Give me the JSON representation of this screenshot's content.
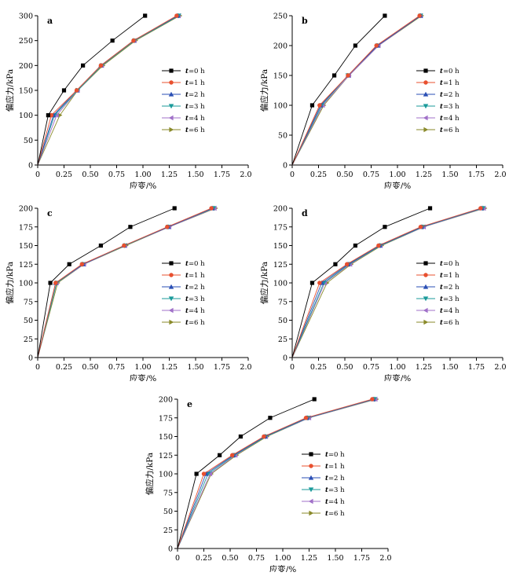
{
  "legend_prefix": "t",
  "legend_labels": [
    "=0 h",
    "=1 h",
    "=2 h",
    "=3 h",
    "=4 h",
    "=6 h"
  ],
  "series_colors": [
    "#000000",
    "#e8502f",
    "#2a4fb5",
    "#1a9a9a",
    "#a070c8",
    "#8a8a2a"
  ],
  "series_markers": [
    "square",
    "circle",
    "triangle-up",
    "triangle-down",
    "triangle-left",
    "triangle-right"
  ],
  "chart_data": [
    {
      "type": "line",
      "panel_label": "a",
      "xlabel": "应变/%",
      "ylabel": "偏应力/kPa",
      "xlim": [
        0,
        2.0
      ],
      "ylim": [
        0,
        300
      ],
      "xticks": [
        "0",
        "0.25",
        "0.50",
        "0.75",
        "1.00",
        "1.25",
        "1.50",
        "1.75",
        "2.00"
      ],
      "yticks": [
        "0",
        "50",
        "100",
        "150",
        "200",
        "250",
        "300"
      ],
      "legend": "center-right",
      "series": [
        {
          "x": [
            0,
            0.1,
            0.25,
            0.43,
            0.71,
            1.02
          ],
          "y": [
            0,
            100,
            150,
            200,
            250,
            300
          ]
        },
        {
          "x": [
            0,
            0.13,
            0.37,
            0.6,
            0.91,
            1.32
          ],
          "y": [
            0,
            100,
            150,
            200,
            250,
            300
          ]
        },
        {
          "x": [
            0,
            0.15,
            0.37,
            0.6,
            0.91,
            1.33
          ],
          "y": [
            0,
            100,
            150,
            200,
            250,
            300
          ]
        },
        {
          "x": [
            0,
            0.16,
            0.38,
            0.61,
            0.92,
            1.34
          ],
          "y": [
            0,
            100,
            150,
            200,
            250,
            300
          ]
        },
        {
          "x": [
            0,
            0.18,
            0.38,
            0.61,
            0.92,
            1.34
          ],
          "y": [
            0,
            100,
            150,
            200,
            250,
            300
          ]
        },
        {
          "x": [
            0,
            0.21,
            0.38,
            0.62,
            0.93,
            1.35
          ],
          "y": [
            0,
            100,
            150,
            200,
            250,
            300
          ]
        }
      ]
    },
    {
      "type": "line",
      "panel_label": "b",
      "xlabel": "应变/%",
      "ylabel": "偏应力/kPa",
      "xlim": [
        0,
        2.0
      ],
      "ylim": [
        0,
        250
      ],
      "xticks": [
        "0",
        "0.25",
        "0.50",
        "0.75",
        "1.00",
        "1.25",
        "1.50",
        "1.75",
        "2.00"
      ],
      "yticks": [
        "0",
        "50",
        "100",
        "150",
        "200",
        "250"
      ],
      "legend": "center-right",
      "series": [
        {
          "x": [
            0,
            0.19,
            0.4,
            0.6,
            0.88
          ],
          "y": [
            0,
            100,
            150,
            200,
            250
          ]
        },
        {
          "x": [
            0,
            0.26,
            0.53,
            0.8,
            1.21
          ],
          "y": [
            0,
            100,
            150,
            200,
            250
          ]
        },
        {
          "x": [
            0,
            0.27,
            0.53,
            0.81,
            1.22
          ],
          "y": [
            0,
            100,
            150,
            200,
            250
          ]
        },
        {
          "x": [
            0,
            0.28,
            0.53,
            0.81,
            1.22
          ],
          "y": [
            0,
            100,
            150,
            200,
            250
          ]
        },
        {
          "x": [
            0,
            0.29,
            0.54,
            0.82,
            1.22
          ],
          "y": [
            0,
            100,
            150,
            200,
            250
          ]
        },
        {
          "x": [
            0,
            0.3,
            0.54,
            0.82,
            1.23
          ],
          "y": [
            0,
            100,
            150,
            200,
            250
          ]
        }
      ]
    },
    {
      "type": "line",
      "panel_label": "c",
      "xlabel": "应变/%",
      "ylabel": "偏应力/kPa",
      "xlim": [
        0,
        2.0
      ],
      "ylim": [
        0,
        200
      ],
      "xticks": [
        "0",
        "0.25",
        "0.50",
        "0.75",
        "1.00",
        "1.25",
        "1.50",
        "1.75",
        "2.00"
      ],
      "yticks": [
        "0",
        "25",
        "50",
        "75",
        "100",
        "125",
        "150",
        "175",
        "200"
      ],
      "legend": "center-right",
      "series": [
        {
          "x": [
            0,
            0.12,
            0.3,
            0.6,
            0.88,
            1.3
          ],
          "y": [
            0,
            100,
            125,
            150,
            175,
            200
          ]
        },
        {
          "x": [
            0,
            0.17,
            0.42,
            0.82,
            1.23,
            1.65
          ],
          "y": [
            0,
            100,
            125,
            150,
            175,
            200
          ]
        },
        {
          "x": [
            0,
            0.17,
            0.43,
            0.82,
            1.24,
            1.66
          ],
          "y": [
            0,
            100,
            125,
            150,
            175,
            200
          ]
        },
        {
          "x": [
            0,
            0.18,
            0.43,
            0.83,
            1.24,
            1.67
          ],
          "y": [
            0,
            100,
            125,
            150,
            175,
            200
          ]
        },
        {
          "x": [
            0,
            0.18,
            0.44,
            0.83,
            1.25,
            1.68
          ],
          "y": [
            0,
            100,
            125,
            150,
            175,
            200
          ]
        },
        {
          "x": [
            0,
            0.19,
            0.44,
            0.84,
            1.25,
            1.69
          ],
          "y": [
            0,
            100,
            125,
            150,
            175,
            200
          ]
        }
      ]
    },
    {
      "type": "line",
      "panel_label": "d",
      "xlabel": "应变/%",
      "ylabel": "偏应力/kPa",
      "xlim": [
        0,
        2.0
      ],
      "ylim": [
        0,
        200
      ],
      "xticks": [
        "0",
        "0.25",
        "0.50",
        "0.75",
        "1.00",
        "1.25",
        "1.50",
        "1.75",
        "2.00"
      ],
      "yticks": [
        "0",
        "25",
        "50",
        "75",
        "100",
        "125",
        "150",
        "175",
        "200"
      ],
      "legend": "center-right",
      "series": [
        {
          "x": [
            0,
            0.19,
            0.41,
            0.6,
            0.88,
            1.31
          ],
          "y": [
            0,
            100,
            125,
            150,
            175,
            200
          ]
        },
        {
          "x": [
            0,
            0.26,
            0.52,
            0.82,
            1.22,
            1.79
          ],
          "y": [
            0,
            100,
            125,
            150,
            175,
            200
          ]
        },
        {
          "x": [
            0,
            0.28,
            0.53,
            0.83,
            1.23,
            1.8
          ],
          "y": [
            0,
            100,
            125,
            150,
            175,
            200
          ]
        },
        {
          "x": [
            0,
            0.3,
            0.54,
            0.84,
            1.24,
            1.81
          ],
          "y": [
            0,
            100,
            125,
            150,
            175,
            200
          ]
        },
        {
          "x": [
            0,
            0.31,
            0.55,
            0.84,
            1.25,
            1.82
          ],
          "y": [
            0,
            100,
            125,
            150,
            175,
            200
          ]
        },
        {
          "x": [
            0,
            0.33,
            0.56,
            0.85,
            1.25,
            1.83
          ],
          "y": [
            0,
            100,
            125,
            150,
            175,
            200
          ]
        }
      ]
    },
    {
      "type": "line",
      "panel_label": "e",
      "xlabel": "应变/%",
      "ylabel": "偏应力/kPa",
      "xlim": [
        0,
        2.0
      ],
      "ylim": [
        0,
        200
      ],
      "xticks": [
        "0",
        "0.25",
        "0.50",
        "0.75",
        "1.00",
        "1.25",
        "1.50",
        "1.75",
        "2.00"
      ],
      "yticks": [
        "0",
        "25",
        "50",
        "75",
        "100",
        "125",
        "150",
        "175",
        "200"
      ],
      "legend": "center-right",
      "series": [
        {
          "x": [
            0,
            0.18,
            0.4,
            0.6,
            0.88,
            1.3
          ],
          "y": [
            0,
            100,
            125,
            150,
            175,
            200
          ]
        },
        {
          "x": [
            0,
            0.25,
            0.52,
            0.82,
            1.22,
            1.85
          ],
          "y": [
            0,
            100,
            125,
            150,
            175,
            200
          ]
        },
        {
          "x": [
            0,
            0.27,
            0.53,
            0.83,
            1.23,
            1.86
          ],
          "y": [
            0,
            100,
            125,
            150,
            175,
            200
          ]
        },
        {
          "x": [
            0,
            0.29,
            0.54,
            0.84,
            1.24,
            1.87
          ],
          "y": [
            0,
            100,
            125,
            150,
            175,
            200
          ]
        },
        {
          "x": [
            0,
            0.31,
            0.55,
            0.84,
            1.25,
            1.88
          ],
          "y": [
            0,
            100,
            125,
            150,
            175,
            200
          ]
        },
        {
          "x": [
            0,
            0.32,
            0.56,
            0.85,
            1.25,
            1.89
          ],
          "y": [
            0,
            100,
            125,
            150,
            175,
            200
          ]
        }
      ]
    }
  ]
}
